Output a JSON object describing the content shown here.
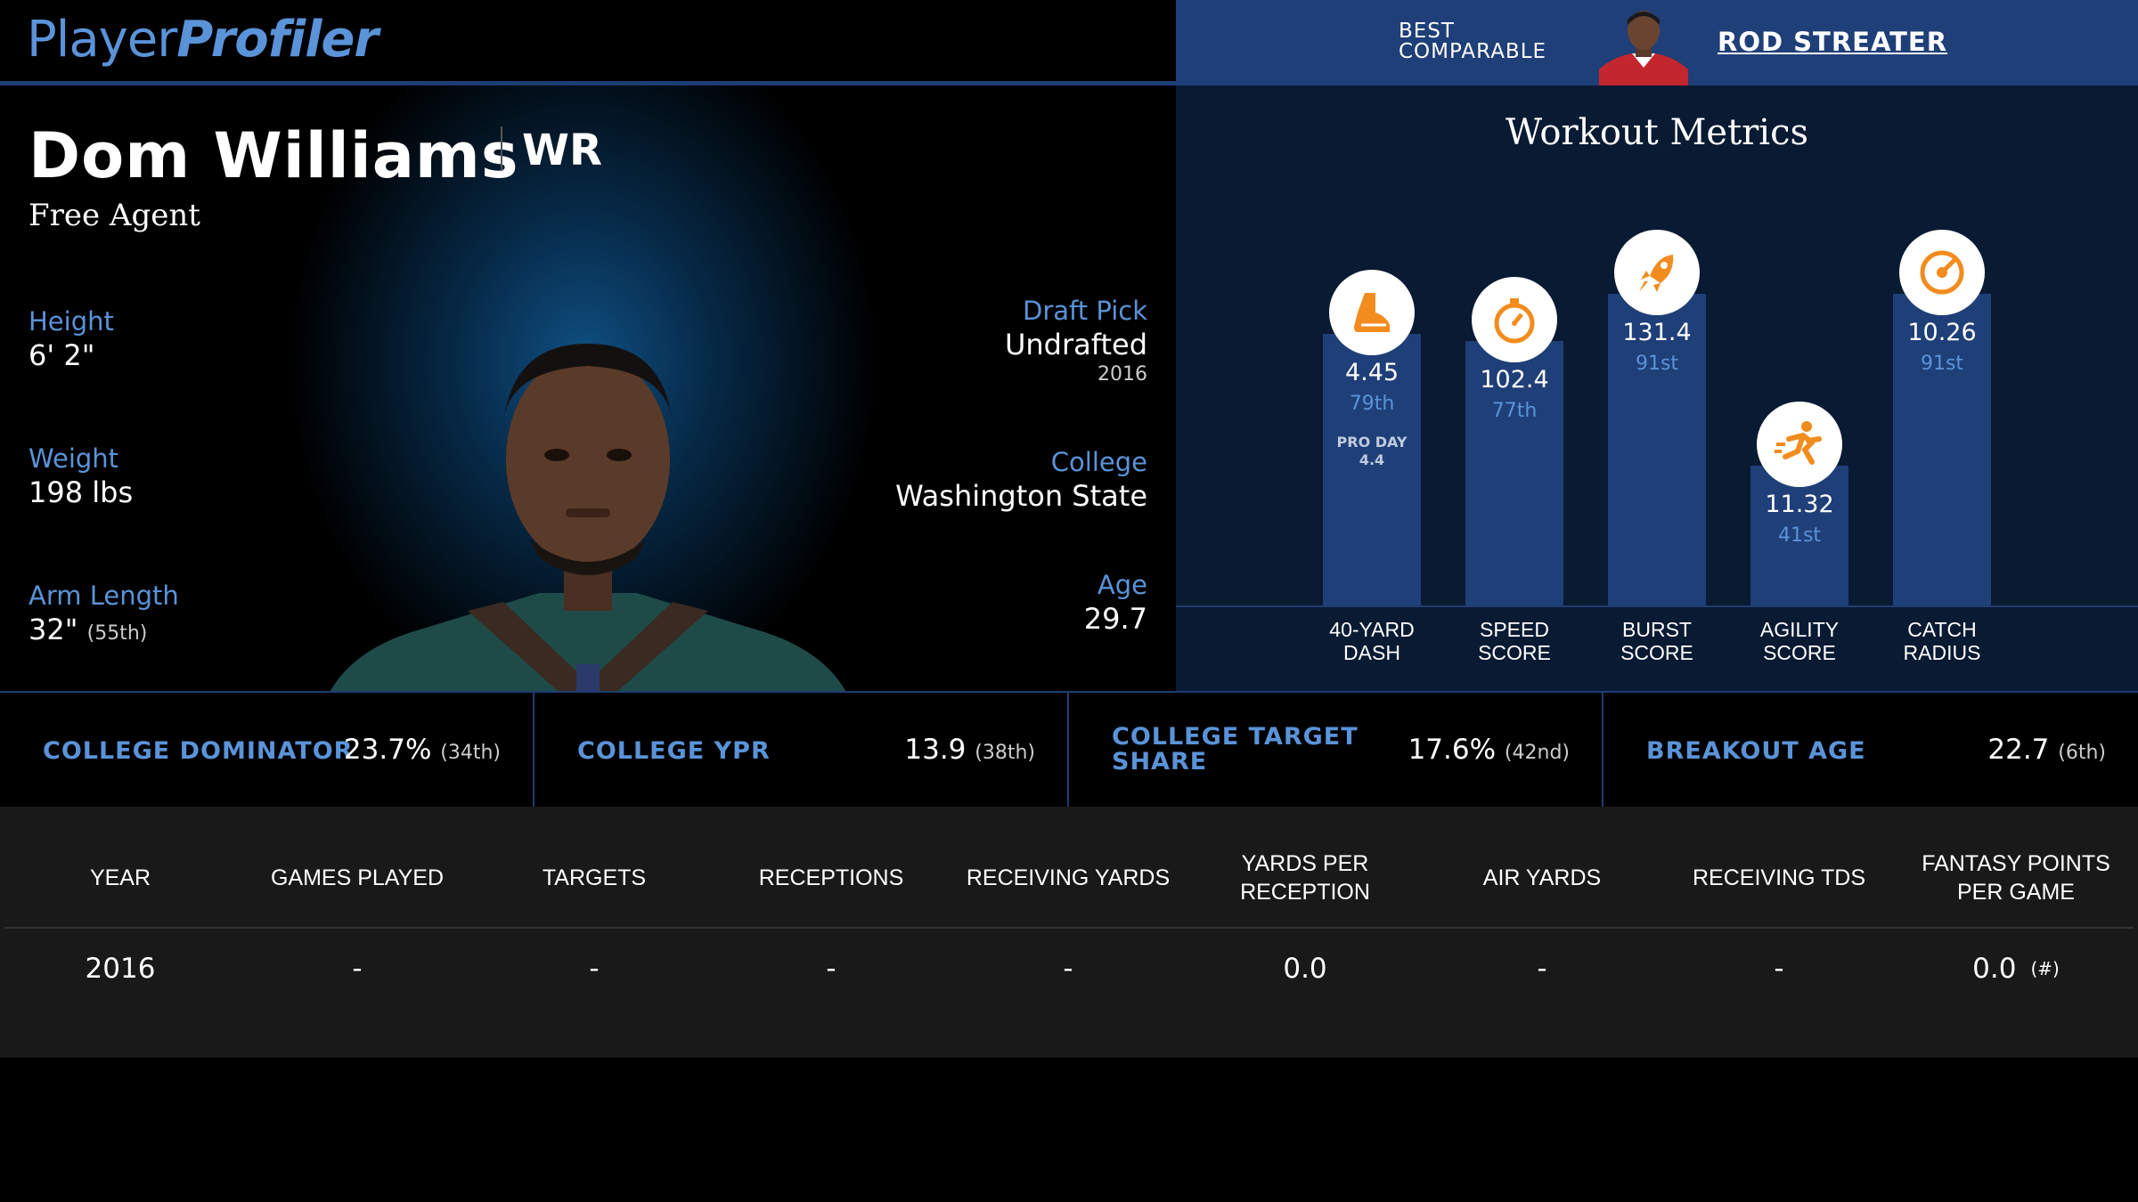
{
  "header": {
    "logo_part1": "Player",
    "logo_part2": "Profiler",
    "comparable_label_line1": "BEST",
    "comparable_label_line2": "COMPARABLE",
    "comparable_name": "ROD STREATER"
  },
  "player": {
    "name": "Dom Williams",
    "position": "WR",
    "team": "Free Agent",
    "height_label": "Height",
    "height_value": "6' 2\"",
    "weight_label": "Weight",
    "weight_value": "198 lbs",
    "arm_label": "Arm Length",
    "arm_value": "32\"",
    "arm_pct": "(55th)",
    "draft_label": "Draft Pick",
    "draft_value": "Undrafted",
    "draft_year": "2016",
    "college_label": "College",
    "college_value": "Washington State",
    "age_label": "Age",
    "age_value": "29.7"
  },
  "workout": {
    "title": "Workout Metrics",
    "metrics": [
      {
        "name_line1": "40-YARD",
        "name_line2": "DASH",
        "value": "4.45",
        "percentile": "79th",
        "percentile_num": 79,
        "proday_label": "PRO DAY",
        "proday_value": "4.4",
        "icon": "shoe-icon"
      },
      {
        "name_line1": "SPEED",
        "name_line2": "SCORE",
        "value": "102.4",
        "percentile": "77th",
        "percentile_num": 77,
        "icon": "stopwatch-icon"
      },
      {
        "name_line1": "BURST",
        "name_line2": "SCORE",
        "value": "131.4",
        "percentile": "91st",
        "percentile_num": 91,
        "icon": "rocket-icon"
      },
      {
        "name_line1": "AGILITY",
        "name_line2": "SCORE",
        "value": "11.32",
        "percentile": "41st",
        "percentile_num": 41,
        "icon": "runner-icon"
      },
      {
        "name_line1": "CATCH",
        "name_line2": "RADIUS",
        "value": "10.26",
        "percentile": "91st",
        "percentile_num": 91,
        "icon": "target-icon"
      }
    ],
    "accent_color": "#f28c1e",
    "bar_color": "#1f3f78"
  },
  "college": [
    {
      "label_line1": "COLLEGE DOMINATOR",
      "label_line2": "",
      "value": "23.7%",
      "pct": "(34th)"
    },
    {
      "label_line1": "COLLEGE YPR",
      "label_line2": "",
      "value": "13.9",
      "pct": "(38th)"
    },
    {
      "label_line1": "COLLEGE TARGET",
      "label_line2": "SHARE",
      "value": "17.6%",
      "pct": "(42nd)"
    },
    {
      "label_line1": "BREAKOUT AGE",
      "label_line2": "",
      "value": "22.7",
      "pct": "(6th)"
    }
  ],
  "table": {
    "headers": [
      "YEAR",
      "GAMES PLAYED",
      "TARGETS",
      "RECEPTIONS",
      "RECEIVING YARDS",
      "YARDS PER RECEPTION",
      "AIR YARDS",
      "RECEIVING TDS",
      "FANTASY POINTS PER GAME"
    ],
    "rows": [
      {
        "cells": [
          "2016",
          "-",
          "-",
          "-",
          "-",
          "0.0",
          "-",
          "-",
          "0.0"
        ],
        "rank": "(#)"
      }
    ]
  }
}
